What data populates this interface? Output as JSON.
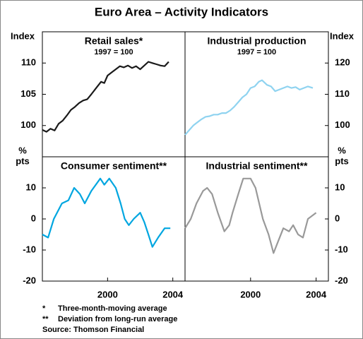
{
  "title": "Euro Area – Activity Indicators",
  "chart_data": [
    {
      "type": "line",
      "title": "Retail sales*",
      "subtitle": "1997 = 100",
      "ylabel": [
        "Index"
      ],
      "side": "left",
      "color": "#1a1a1a",
      "x": [
        1996.0,
        1996.25,
        1996.5,
        1996.75,
        1997.0,
        1997.25,
        1997.5,
        1997.75,
        1998.0,
        1998.25,
        1998.5,
        1998.75,
        1999.0,
        1999.3,
        1999.6,
        1999.8,
        2000.0,
        2000.25,
        2000.5,
        2000.75,
        2001.0,
        2001.25,
        2001.5,
        2001.75,
        2002.0,
        2002.25,
        2002.5,
        2002.75,
        2003.0,
        2003.25,
        2003.5,
        2003.75
      ],
      "values": [
        99.3,
        99.0,
        99.5,
        99.2,
        100.3,
        100.8,
        101.6,
        102.5,
        103.0,
        103.6,
        104.0,
        104.2,
        105.0,
        106.0,
        107.0,
        106.8,
        108.0,
        108.5,
        109.0,
        109.5,
        109.3,
        109.6,
        109.2,
        109.5,
        109.0,
        109.6,
        110.2,
        110.0,
        109.8,
        109.6,
        109.5,
        110.2
      ],
      "xlim": [
        1996,
        2004.75
      ],
      "ylim": [
        95,
        115
      ],
      "yticks": [
        100,
        105,
        110
      ]
    },
    {
      "type": "line",
      "title": "Industrial production",
      "subtitle": "1997 = 100",
      "ylabel": [
        "Index"
      ],
      "side": "right",
      "color": "#8fd3f0",
      "x": [
        1996.0,
        1996.25,
        1996.5,
        1996.75,
        1997.0,
        1997.25,
        1997.5,
        1997.75,
        1998.0,
        1998.25,
        1998.5,
        1998.75,
        1999.0,
        1999.25,
        1999.5,
        1999.75,
        2000.0,
        2000.25,
        2000.5,
        2000.7,
        2001.0,
        2001.25,
        2001.5,
        2001.75,
        2002.0,
        2002.25,
        2002.5,
        2002.75,
        2003.0,
        2003.25,
        2003.5,
        2003.8
      ],
      "values": [
        97.0,
        98.5,
        100.0,
        101.0,
        102.0,
        102.8,
        103.0,
        103.5,
        103.5,
        104.0,
        104.0,
        104.8,
        106.0,
        107.5,
        109.0,
        110.0,
        112.0,
        112.5,
        114.0,
        114.5,
        113.0,
        112.5,
        111.0,
        111.5,
        112.0,
        112.5,
        112.0,
        112.3,
        111.5,
        112.0,
        112.5,
        112.0
      ],
      "xlim": [
        1996,
        2004.75
      ],
      "ylim": [
        90,
        130
      ],
      "yticks": [
        100,
        110,
        120
      ]
    },
    {
      "type": "line",
      "title": "Consumer sentiment**",
      "ylabel": [
        "%",
        "pts"
      ],
      "side": "left",
      "color": "#00a6e0",
      "x": [
        1996.0,
        1996.35,
        1996.7,
        1997.2,
        1997.6,
        1997.95,
        1998.3,
        1998.6,
        1999.0,
        1999.55,
        1999.8,
        2000.1,
        2000.5,
        2000.8,
        2001.05,
        2001.3,
        2001.6,
        2002.0,
        2002.25,
        2002.5,
        2002.75,
        2003.1,
        2003.5,
        2003.85
      ],
      "values": [
        -5,
        -6,
        0,
        5,
        6,
        10,
        8,
        5,
        9,
        13,
        11,
        13,
        10,
        5,
        0,
        -2,
        0,
        2,
        -1,
        -5,
        -9,
        -6,
        -3,
        -3
      ],
      "xlim": [
        1996,
        2004.75
      ],
      "ylim": [
        -20,
        20
      ],
      "yticks": [
        -20,
        -10,
        0,
        10
      ],
      "xticks": [
        2000,
        2004
      ]
    },
    {
      "type": "line",
      "title": "Industrial sentiment**",
      "ylabel": [
        "%",
        "pts"
      ],
      "side": "right",
      "color": "#999999",
      "x": [
        1996.0,
        1996.35,
        1996.7,
        1997.1,
        1997.35,
        1997.65,
        1998.0,
        1998.4,
        1998.7,
        1998.9,
        1999.25,
        1999.55,
        2000.0,
        2000.3,
        2000.75,
        2001.1,
        2001.4,
        2001.7,
        2002.0,
        2002.35,
        2002.6,
        2002.9,
        2003.2,
        2003.5,
        2003.75,
        2004.0
      ],
      "values": [
        -3,
        0,
        5,
        9,
        10,
        8,
        2,
        -4,
        -2,
        2,
        8,
        13,
        13,
        10,
        0,
        -5,
        -11,
        -7,
        -3,
        -4,
        -2,
        -5,
        -6,
        0,
        1,
        2
      ],
      "xlim": [
        1996,
        2004.75
      ],
      "ylim": [
        -20,
        20
      ],
      "yticks": [
        -20,
        -10,
        0,
        10
      ],
      "xticks": [
        2000,
        2004
      ]
    }
  ],
  "notes": [
    {
      "marker": "*",
      "text": "Three-month-moving average"
    },
    {
      "marker": "**",
      "text": "Deviation from long-run average"
    }
  ],
  "source": "Source: Thomson Financial"
}
